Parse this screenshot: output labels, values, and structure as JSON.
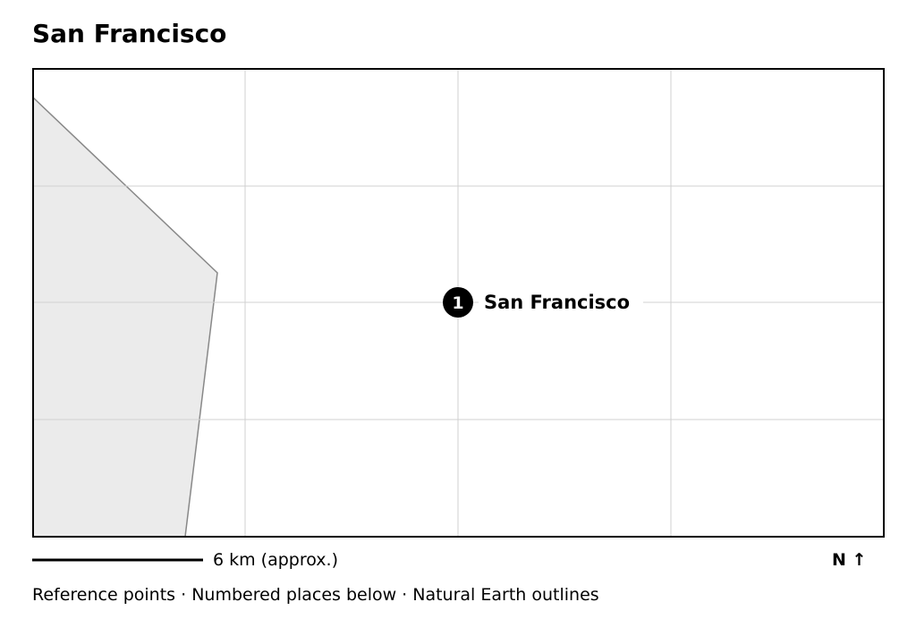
{
  "title": "San Francisco",
  "map": {
    "markers": [
      {
        "number": "1",
        "label": "San Francisco"
      }
    ]
  },
  "scale_bar": {
    "label": "6 km (approx.)"
  },
  "north_arrow": {
    "label": "N ↑"
  },
  "footer": "Reference points · Numbered places below · Natural Earth outlines"
}
